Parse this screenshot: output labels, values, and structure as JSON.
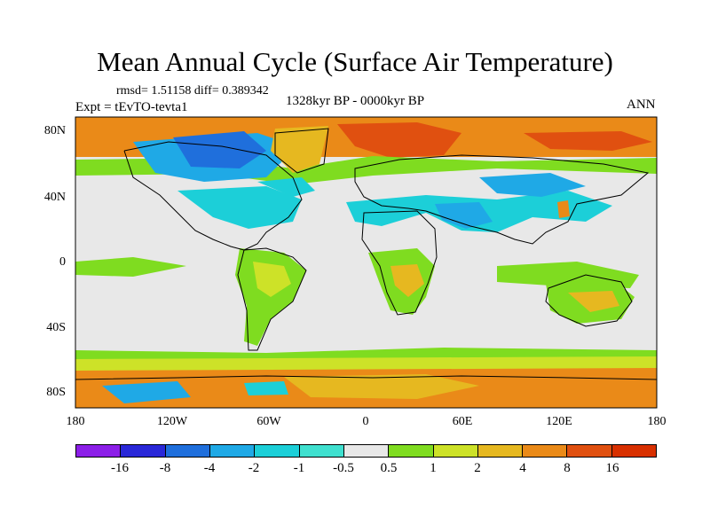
{
  "title": "Mean Annual Cycle (Surface Air Temperature)",
  "stats": "rmsd= 1.51158 diff= 0.389342",
  "period": "1328kyr BP - 0000kyr BP",
  "experiment": "Expt = tEvTO-tevta1",
  "season": "ANN",
  "lat_labels": [
    "80N",
    "40N",
    "0",
    "40S",
    "80S"
  ],
  "lon_labels": [
    "180",
    "120W",
    "60W",
    "0",
    "60E",
    "120E",
    "180"
  ],
  "colorbar": {
    "labels": [
      "-16",
      "-8",
      "-4",
      "-2",
      "-1",
      "-0.5",
      "0.5",
      "1",
      "2",
      "4",
      "8",
      "16"
    ],
    "colors": [
      "#8c1fe8",
      "#2a28d8",
      "#1f6fdc",
      "#1fa9e6",
      "#1ccfd8",
      "#3fe0cf",
      "#e8e8e8",
      "#7fdc20",
      "#cde228",
      "#e6b820",
      "#ea8a18",
      "#e05010",
      "#d83000"
    ]
  },
  "map_colors": {
    "ocean": "#e8e8e8",
    "warm_low": "#7fdc20",
    "warm_mid": "#cde228",
    "warm": "#e6b820",
    "warmer": "#ea8a18",
    "hot": "#e05010",
    "cool": "#1ccfd8",
    "cooler": "#1fa9e6",
    "cold": "#1f6fdc",
    "coast": "#000000"
  }
}
